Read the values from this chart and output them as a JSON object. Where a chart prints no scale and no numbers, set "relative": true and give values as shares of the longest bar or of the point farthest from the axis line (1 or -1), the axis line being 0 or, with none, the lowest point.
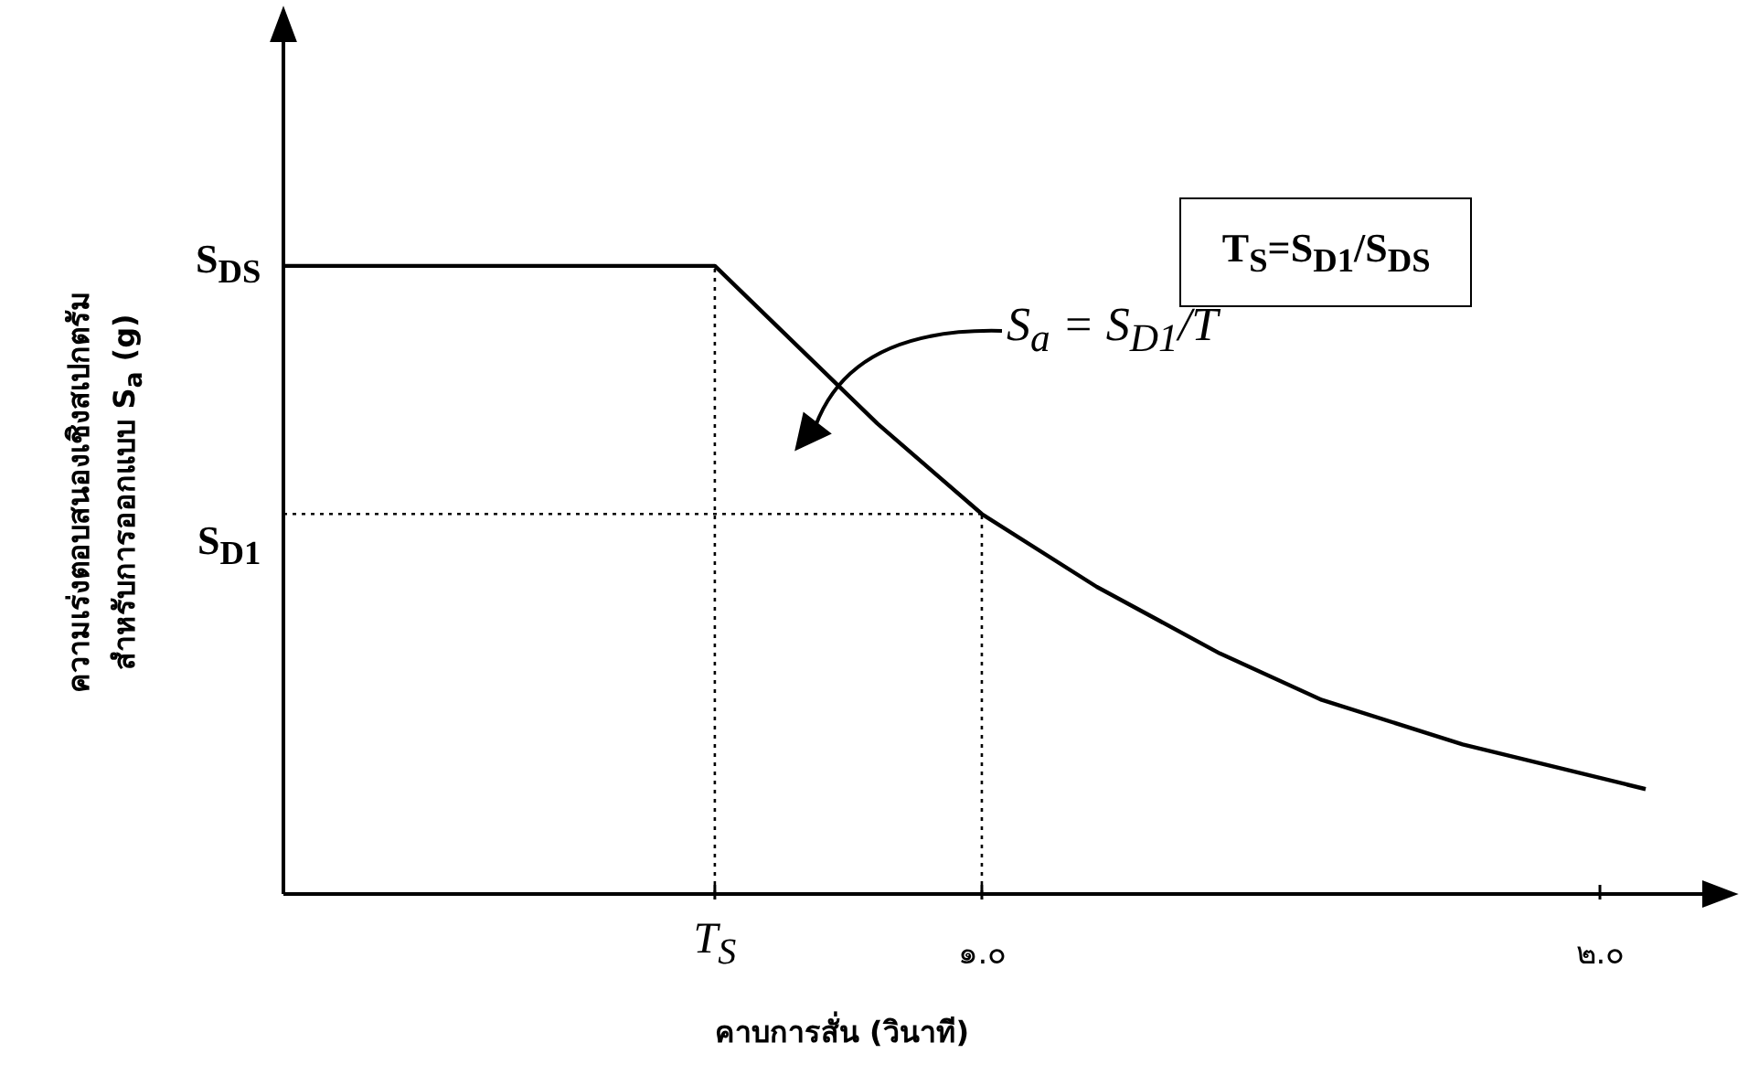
{
  "chart_data": {
    "type": "line",
    "relative": true,
    "xlabel": "คาบการสั่น (วินาที)",
    "ylabel": "ความเร่งตอบสนองเชิงสเปกตรัม\nสำหรับการออกแบบ S$_{a}$ (g)",
    "x": [
      -0.13,
      0.568,
      0.831,
      1.0,
      1.186,
      1.385,
      1.55,
      1.778,
      2.074
    ],
    "values": [
      1,
      1,
      0.749,
      0.605,
      0.489,
      0.383,
      0.309,
      0.238,
      0.167
    ],
    "color": "#000000",
    "marker": "none",
    "line_style": "solid",
    "legend": false,
    "xlim": [
      -0.13,
      2.21
    ],
    "xticks": [
      {
        "value": 0.568,
        "label": "T$_{S}$"
      },
      {
        "value": 1.0,
        "label": "๑.๐"
      },
      {
        "value": 2.0,
        "label": "๒.๐"
      }
    ],
    "ref_lines": [
      {
        "axis": "y",
        "value": 0.605,
        "label": "S$_{D1}$",
        "line_style": "dotted"
      },
      {
        "axis": "x",
        "value": 0.568,
        "line_style": "dotted"
      },
      {
        "axis": "x",
        "value": 1.0,
        "line_style": "dotted"
      }
    ],
    "annotations": [
      "T$_{S}$=S$_{D1}$/S$_{DS}$",
      {
        "text": "S$_{DS}$",
        "x": -0.13,
        "y": 1
      },
      "S$_{a}$ = S$_{D1}$/T"
    ]
  }
}
